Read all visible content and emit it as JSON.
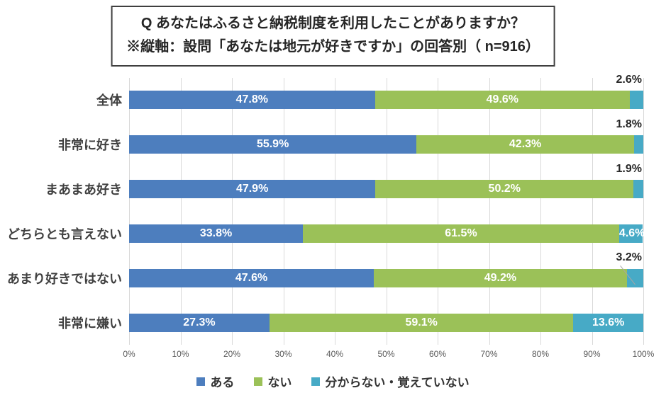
{
  "title": {
    "line1": "Q あなたはふるさと納税制度を利用したことがありますか？",
    "line2": "※縦軸：設問「あなたは地元が好きですか」の回答別（ n=916）"
  },
  "colors": {
    "series_blue": "#4d7ebe",
    "series_green": "#9bc158",
    "series_teal": "#47aac6",
    "gridline": "#d9d9d9",
    "bar_inner_label": "#ffffff",
    "outer_label": "#262626",
    "category_label": "#404040",
    "axis_text": "#595959",
    "leader_line": "#a6a6a6",
    "title_border": "#3f3f3f"
  },
  "chart_data": {
    "type": "bar",
    "orientation": "horizontal",
    "stacked": true,
    "title": "Q あなたはふるさと納税制度を利用したことがありますか？ ※縦軸：設問「あなたは地元が好きですか」の回答別（ n=916）",
    "categories": [
      "全体",
      "非常に好き",
      "まあまあ好き",
      "どちらとも言えない",
      "あまり好きではない",
      "非常に嫌い"
    ],
    "series": [
      {
        "name": "ある",
        "color": "#4d7ebe",
        "values": [
          47.8,
          55.9,
          47.9,
          33.8,
          47.6,
          27.3
        ]
      },
      {
        "name": "ない",
        "color": "#9bc158",
        "values": [
          49.6,
          42.3,
          50.2,
          61.5,
          49.2,
          59.1
        ]
      },
      {
        "name": "分からない・覚えていない",
        "color": "#47aac6",
        "values": [
          2.6,
          1.8,
          1.9,
          4.6,
          3.2,
          13.6
        ]
      }
    ],
    "value_labels": [
      [
        "47.8%",
        "49.6%",
        "2.6%"
      ],
      [
        "55.9%",
        "42.3%",
        "1.8%"
      ],
      [
        "47.9%",
        "50.2%",
        "1.9%"
      ],
      [
        "33.8%",
        "61.5%",
        "4.6%"
      ],
      [
        "47.6%",
        "49.2%",
        "3.2%"
      ],
      [
        "27.3%",
        "59.1%",
        "13.6%"
      ]
    ],
    "third_series_label_placement": [
      "above",
      "above",
      "above",
      "inside",
      "above-leader",
      "inside"
    ],
    "x_ticks": [
      "0%",
      "10%",
      "20%",
      "30%",
      "40%",
      "50%",
      "60%",
      "70%",
      "80%",
      "90%",
      "100%"
    ],
    "xlim": [
      0,
      100
    ],
    "grid": true,
    "legend_position": "bottom"
  },
  "legend": {
    "items": [
      {
        "label": "ある",
        "color": "#4d7ebe"
      },
      {
        "label": "ない",
        "color": "#9bc158"
      },
      {
        "label": "分からない・覚えていない",
        "color": "#47aac6"
      }
    ]
  }
}
